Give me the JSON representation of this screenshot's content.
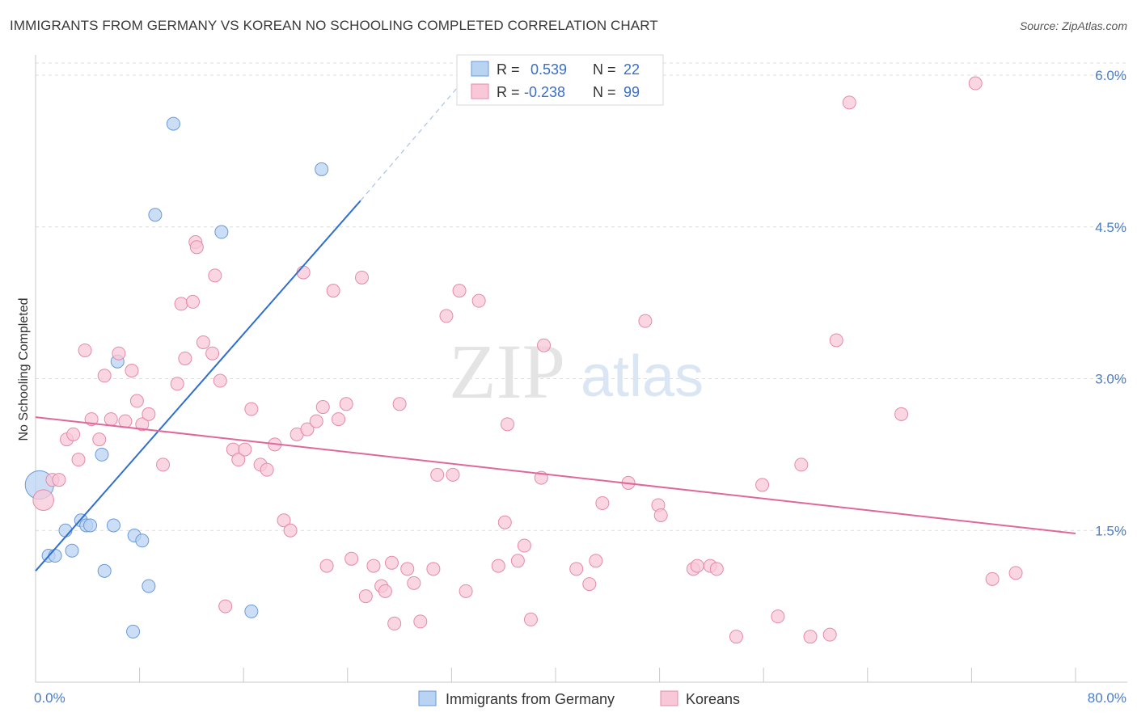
{
  "title": "IMMIGRANTS FROM GERMANY VS KOREAN NO SCHOOLING COMPLETED CORRELATION CHART",
  "source": "Source: ZipAtlas.com",
  "watermark": {
    "zip": "ZIP",
    "atlas": "atlas"
  },
  "colors": {
    "blue_fill": "#b9d3f3",
    "blue_stroke": "#6a9ad8",
    "blue_line": "#2f6fcf",
    "pink_fill": "#f8c8d8",
    "pink_stroke": "#e58aa8",
    "pink_line": "#e0679a",
    "grid": "#dcdcdc",
    "axis_text": "#4a7cc7"
  },
  "stats": {
    "r_label": "R =",
    "n_label": "N =",
    "rows": [
      {
        "series": "Immigrants from Germany",
        "r": "0.539",
        "n": "22"
      },
      {
        "series": "Koreans",
        "r": "-0.238",
        "n": "99"
      }
    ]
  },
  "chart_data": {
    "type": "scatter",
    "title": "IMMIGRANTS FROM GERMANY VS KOREAN NO SCHOOLING COMPLETED CORRELATION CHART",
    "xlabel": "",
    "ylabel": "No Schooling Completed",
    "xlim": [
      0,
      80
    ],
    "ylim": [
      0,
      6.2
    ],
    "x_tick_labels": [
      {
        "value": 0,
        "label": "0.0%"
      },
      {
        "value": 80,
        "label": "80.0%"
      }
    ],
    "y_ticks": [
      {
        "value": 1.5,
        "label": "1.5%"
      },
      {
        "value": 3.0,
        "label": "3.0%"
      },
      {
        "value": 4.5,
        "label": "4.5%"
      },
      {
        "value": 6.0,
        "label": "6.0%"
      }
    ],
    "x_minor_ticks": [
      8,
      16,
      24,
      32,
      40,
      48,
      56,
      64,
      72,
      80
    ],
    "grid": true,
    "legend_position": "bottom",
    "series": [
      {
        "name": "Immigrants from Germany",
        "color": "blue",
        "points": [
          [
            0.3,
            1.95,
            22
          ],
          [
            1.0,
            1.25,
            10
          ],
          [
            1.5,
            1.25,
            10
          ],
          [
            2.3,
            1.5,
            10
          ],
          [
            2.8,
            1.3,
            10
          ],
          [
            3.5,
            1.6,
            10
          ],
          [
            3.9,
            1.55,
            10
          ],
          [
            4.2,
            1.55,
            10
          ],
          [
            5.1,
            2.25,
            10
          ],
          [
            5.3,
            1.1,
            10
          ],
          [
            6.0,
            1.55,
            10
          ],
          [
            6.3,
            3.17,
            10
          ],
          [
            7.6,
            1.45,
            10
          ],
          [
            8.2,
            1.4,
            10
          ],
          [
            8.7,
            0.95,
            10
          ],
          [
            7.5,
            0.5,
            10
          ],
          [
            9.2,
            4.62,
            10
          ],
          [
            10.6,
            5.52,
            10
          ],
          [
            14.3,
            4.45,
            10
          ],
          [
            16.6,
            0.7,
            10
          ],
          [
            22.0,
            5.07,
            10
          ]
        ],
        "trend": {
          "x0": 0,
          "y0": 1.1,
          "x1": 25,
          "y1": 4.76,
          "dash_x1": 33.6,
          "dash_y1": 6.05
        }
      },
      {
        "name": "Koreans",
        "color": "pink",
        "points": [
          [
            0.6,
            1.8,
            16
          ],
          [
            1.3,
            2.0,
            10
          ],
          [
            1.8,
            2.0,
            10
          ],
          [
            2.4,
            2.4,
            10
          ],
          [
            2.9,
            2.45,
            10
          ],
          [
            3.3,
            2.2,
            10
          ],
          [
            3.8,
            3.28,
            10
          ],
          [
            4.3,
            2.6,
            10
          ],
          [
            4.9,
            2.4,
            10
          ],
          [
            5.3,
            3.03,
            10
          ],
          [
            5.8,
            2.6,
            10
          ],
          [
            6.4,
            3.25,
            10
          ],
          [
            6.9,
            2.58,
            10
          ],
          [
            7.4,
            3.08,
            10
          ],
          [
            7.8,
            2.78,
            10
          ],
          [
            8.2,
            2.55,
            10
          ],
          [
            8.7,
            2.65,
            10
          ],
          [
            9.8,
            2.15,
            10
          ],
          [
            10.9,
            2.95,
            10
          ],
          [
            11.2,
            3.74,
            10
          ],
          [
            11.5,
            3.2,
            10
          ],
          [
            12.1,
            3.76,
            10
          ],
          [
            12.3,
            4.35,
            10
          ],
          [
            12.4,
            4.3,
            10
          ],
          [
            12.9,
            3.36,
            10
          ],
          [
            13.6,
            3.25,
            10
          ],
          [
            13.8,
            4.02,
            10
          ],
          [
            14.2,
            2.98,
            10
          ],
          [
            14.6,
            0.75,
            10
          ],
          [
            15.2,
            2.3,
            10
          ],
          [
            15.6,
            2.2,
            10
          ],
          [
            16.1,
            2.3,
            10
          ],
          [
            16.6,
            2.7,
            10
          ],
          [
            17.3,
            2.15,
            10
          ],
          [
            17.8,
            2.1,
            10
          ],
          [
            18.4,
            2.35,
            10
          ],
          [
            19.1,
            1.6,
            10
          ],
          [
            19.6,
            1.5,
            10
          ],
          [
            20.1,
            2.45,
            10
          ],
          [
            20.6,
            4.05,
            10
          ],
          [
            20.9,
            2.5,
            10
          ],
          [
            21.6,
            2.58,
            10
          ],
          [
            22.1,
            2.72,
            10
          ],
          [
            22.4,
            1.15,
            10
          ],
          [
            22.9,
            3.87,
            10
          ],
          [
            23.3,
            2.6,
            10
          ],
          [
            23.9,
            2.75,
            10
          ],
          [
            24.3,
            1.22,
            10
          ],
          [
            25.1,
            4.0,
            10
          ],
          [
            25.4,
            0.85,
            10
          ],
          [
            26.0,
            1.15,
            10
          ],
          [
            26.6,
            0.95,
            10
          ],
          [
            26.9,
            0.9,
            10
          ],
          [
            27.4,
            1.18,
            10
          ],
          [
            27.6,
            0.58,
            10
          ],
          [
            28.0,
            2.75,
            10
          ],
          [
            28.6,
            1.12,
            10
          ],
          [
            29.1,
            0.98,
            10
          ],
          [
            29.6,
            0.6,
            10
          ],
          [
            30.6,
            1.12,
            10
          ],
          [
            30.9,
            2.05,
            10
          ],
          [
            31.6,
            3.62,
            10
          ],
          [
            32.1,
            2.05,
            10
          ],
          [
            32.6,
            3.87,
            10
          ],
          [
            33.1,
            0.9,
            10
          ],
          [
            34.1,
            3.77,
            10
          ],
          [
            35.6,
            1.15,
            10
          ],
          [
            36.1,
            1.58,
            10
          ],
          [
            36.3,
            2.55,
            10
          ],
          [
            37.1,
            1.2,
            10
          ],
          [
            37.6,
            1.35,
            10
          ],
          [
            38.1,
            0.62,
            10
          ],
          [
            38.9,
            2.02,
            10
          ],
          [
            39.1,
            3.33,
            10
          ],
          [
            41.6,
            1.12,
            10
          ],
          [
            42.6,
            0.97,
            10
          ],
          [
            43.1,
            1.2,
            10
          ],
          [
            43.6,
            1.77,
            10
          ],
          [
            45.6,
            1.97,
            10
          ],
          [
            46.9,
            3.57,
            10
          ],
          [
            47.9,
            1.75,
            10
          ],
          [
            48.1,
            1.65,
            10
          ],
          [
            50.6,
            1.12,
            10
          ],
          [
            50.9,
            1.15,
            10
          ],
          [
            51.9,
            1.15,
            10
          ],
          [
            52.4,
            1.12,
            10
          ],
          [
            53.9,
            0.45,
            10
          ],
          [
            55.9,
            1.95,
            10
          ],
          [
            57.1,
            0.65,
            10
          ],
          [
            58.9,
            2.15,
            10
          ],
          [
            59.6,
            0.45,
            10
          ],
          [
            61.1,
            0.47,
            10
          ],
          [
            61.6,
            3.38,
            10
          ],
          [
            62.6,
            5.73,
            10
          ],
          [
            66.6,
            2.65,
            10
          ],
          [
            72.3,
            5.92,
            10
          ],
          [
            73.6,
            1.02,
            10
          ],
          [
            75.4,
            1.08,
            10
          ]
        ],
        "trend": {
          "x0": 0,
          "y0": 2.62,
          "x1": 80,
          "y1": 1.47
        }
      }
    ]
  },
  "legend": {
    "items": [
      {
        "label": "Immigrants from Germany",
        "color": "blue"
      },
      {
        "label": "Koreans",
        "color": "pink"
      }
    ]
  }
}
